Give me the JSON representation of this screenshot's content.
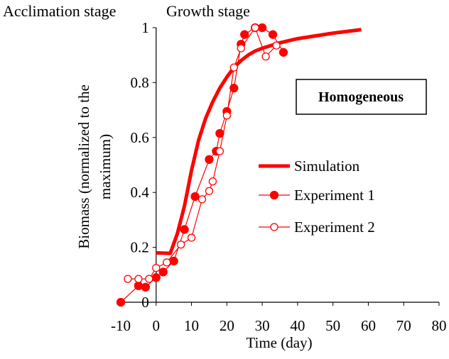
{
  "chart_data": {
    "type": "line",
    "stage_labels": [
      "Acclimation stage",
      "Growth stage"
    ],
    "annotation": "Homogeneous",
    "xlabel": "Time (day)",
    "ylabel_lines": [
      "Biomass (normalized to the",
      "maximum)"
    ],
    "xlim": [
      -10,
      80
    ],
    "ylim": [
      0,
      1
    ],
    "x_ticks": [
      -10,
      0,
      10,
      20,
      30,
      40,
      50,
      60,
      70,
      80
    ],
    "y_ticks": [
      0,
      0.2,
      0.4,
      0.6,
      0.8,
      1
    ],
    "y_tick_labels": [
      "0",
      "0.2",
      "0.4",
      "0.6",
      "0.8",
      "1"
    ],
    "colors": {
      "series": "#ff0000",
      "axis": "#000000"
    },
    "series": [
      {
        "name": "Simulation",
        "style": "thick-line",
        "x": [
          0,
          4,
          6,
          8,
          10,
          12,
          14,
          16,
          18,
          20,
          22,
          24,
          26,
          28,
          30,
          35,
          40,
          45,
          50,
          55,
          58
        ],
        "y": [
          0.18,
          0.178,
          0.25,
          0.35,
          0.48,
          0.59,
          0.67,
          0.73,
          0.78,
          0.82,
          0.855,
          0.88,
          0.9,
          0.915,
          0.925,
          0.945,
          0.96,
          0.97,
          0.98,
          0.988,
          0.993
        ]
      },
      {
        "name": "Experiment 1",
        "style": "line-filled-circle",
        "x": [
          -10,
          -5,
          -3,
          0,
          2,
          5,
          8,
          11,
          15,
          17,
          18,
          20,
          22,
          24,
          25,
          28,
          30,
          33,
          36
        ],
        "y": [
          0.0,
          0.06,
          0.055,
          0.09,
          0.11,
          0.15,
          0.265,
          0.385,
          0.52,
          0.55,
          0.615,
          0.695,
          0.78,
          0.94,
          0.975,
          1.0,
          1.0,
          0.975,
          0.91
        ]
      },
      {
        "name": "Experiment 2",
        "style": "line-open-circle",
        "x": [
          -8,
          -5,
          -2,
          0,
          3,
          7,
          10,
          13,
          15,
          16,
          18,
          20,
          22,
          24,
          28,
          31,
          34
        ],
        "y": [
          0.085,
          0.085,
          0.085,
          0.125,
          0.145,
          0.21,
          0.235,
          0.375,
          0.405,
          0.44,
          0.55,
          0.68,
          0.855,
          0.925,
          1.0,
          0.895,
          0.935
        ]
      }
    ]
  }
}
